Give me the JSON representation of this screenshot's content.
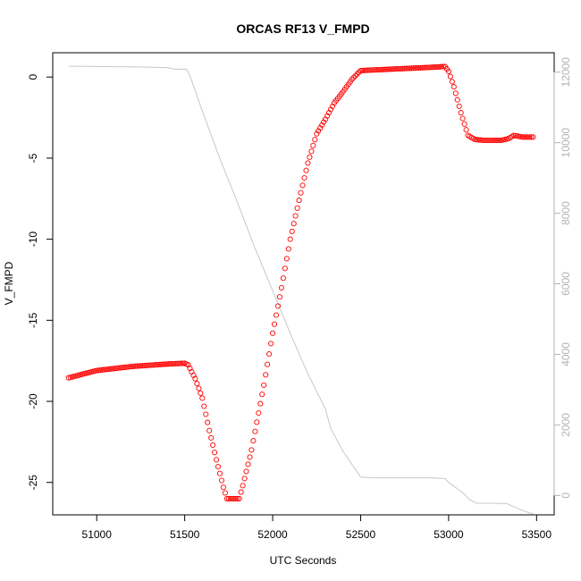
{
  "chart_data": {
    "type": "scatter",
    "title": "ORCAS RF13 V_FMPD",
    "xlabel": "UTC Seconds",
    "ylabel": "V_FMPD",
    "xlim": [
      50750,
      53600
    ],
    "ylim": [
      -27,
      1.5
    ],
    "x_ticks": [
      51000,
      51500,
      52000,
      52500,
      53000,
      53500
    ],
    "x_tick_labels": [
      "51000",
      "51500",
      "52000",
      "52500",
      "53000",
      "53500"
    ],
    "y_ticks": [
      0,
      -5,
      -10,
      -15,
      -20,
      -25
    ],
    "y_tick_labels": [
      "0",
      "-5",
      "-10",
      "-15",
      "-20",
      "-25"
    ],
    "y2lim": [
      -550,
      12550
    ],
    "y2_ticks": [
      0,
      2000,
      4000,
      6000,
      8000,
      10000,
      12000
    ],
    "y2_tick_labels": [
      "0",
      "2000",
      "4000",
      "6000",
      "8000",
      "10000",
      "12000"
    ],
    "series": [
      {
        "axis": "left",
        "marker": "open-circle",
        "color": "#ff0000",
        "points": [
          [
            50840,
            -18.55
          ],
          [
            51000,
            -18.1
          ],
          [
            51200,
            -17.85
          ],
          [
            51400,
            -17.7
          ],
          [
            51500,
            -17.65
          ],
          [
            51520,
            -17.75
          ],
          [
            51560,
            -18.6
          ],
          [
            51600,
            -19.8
          ],
          [
            51640,
            -21.8
          ],
          [
            51680,
            -23.6
          ],
          [
            51720,
            -25.3
          ],
          [
            51740,
            -26.0
          ],
          [
            51810,
            -26.0
          ],
          [
            51830,
            -25.2
          ],
          [
            51880,
            -23.0
          ],
          [
            51950,
            -19.0
          ],
          [
            52000,
            -15.8
          ],
          [
            52050,
            -13.0
          ],
          [
            52100,
            -10.0
          ],
          [
            52150,
            -7.6
          ],
          [
            52200,
            -5.3
          ],
          [
            52250,
            -3.5
          ],
          [
            52300,
            -2.6
          ],
          [
            52350,
            -1.6
          ],
          [
            52400,
            -0.9
          ],
          [
            52450,
            -0.15
          ],
          [
            52500,
            0.4
          ],
          [
            52600,
            0.45
          ],
          [
            52700,
            0.5
          ],
          [
            52800,
            0.55
          ],
          [
            52900,
            0.6
          ],
          [
            52980,
            0.65
          ],
          [
            53000,
            0.35
          ],
          [
            53030,
            -0.6
          ],
          [
            53070,
            -2.2
          ],
          [
            53110,
            -3.6
          ],
          [
            53150,
            -3.85
          ],
          [
            53200,
            -3.9
          ],
          [
            53300,
            -3.9
          ],
          [
            53340,
            -3.8
          ],
          [
            53370,
            -3.6
          ],
          [
            53420,
            -3.7
          ],
          [
            53480,
            -3.7
          ]
        ]
      },
      {
        "axis": "right",
        "marker": "line",
        "color": "#c8c8c8",
        "points": [
          [
            50840,
            12170
          ],
          [
            51000,
            12160
          ],
          [
            51200,
            12150
          ],
          [
            51400,
            12130
          ],
          [
            51450,
            12080
          ],
          [
            51510,
            12090
          ],
          [
            51530,
            11900
          ],
          [
            51600,
            10900
          ],
          [
            51700,
            9550
          ],
          [
            51800,
            8300
          ],
          [
            51900,
            7000
          ],
          [
            52000,
            5800
          ],
          [
            52100,
            4600
          ],
          [
            52200,
            3450
          ],
          [
            52300,
            2450
          ],
          [
            52330,
            1900
          ],
          [
            52400,
            1250
          ],
          [
            52500,
            520
          ],
          [
            52600,
            500
          ],
          [
            52700,
            500
          ],
          [
            52800,
            500
          ],
          [
            52900,
            500
          ],
          [
            52980,
            480
          ],
          [
            53000,
            370
          ],
          [
            53080,
            80
          ],
          [
            53120,
            -120
          ],
          [
            53160,
            -220
          ],
          [
            53250,
            -220
          ],
          [
            53330,
            -230
          ],
          [
            53400,
            -380
          ],
          [
            53460,
            -500
          ],
          [
            53480,
            -510
          ]
        ]
      }
    ]
  }
}
